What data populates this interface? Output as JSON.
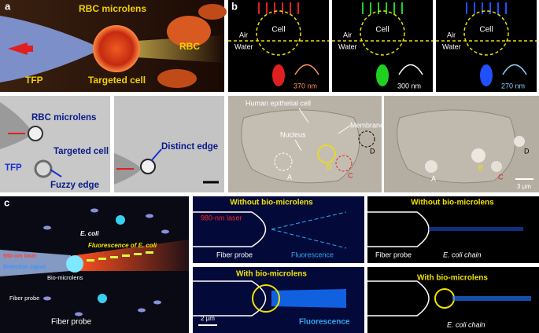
{
  "panel_a": {
    "label": "a",
    "top": {
      "rbc_microlens": "RBC microlens",
      "rbc": "RBC",
      "tfp": "TFP",
      "targeted_cell": "Targeted cell"
    },
    "bottom": {
      "rbc_microlens": "RBC microlens",
      "targeted_cell": "Targeted cell",
      "tfp": "TFP",
      "fuzzy_edge": "Fuzzy edge",
      "distinct_edge": "Distinct edge"
    }
  },
  "panel_b": {
    "label": "b",
    "images": [
      {
        "cell": "Cell",
        "air": "Air",
        "water": "Water",
        "wavelength": "370 nm"
      },
      {
        "cell": "Cell",
        "air": "Air",
        "water": "Water",
        "wavelength": "300 nm"
      },
      {
        "cell": "Cell",
        "air": "Air",
        "water": "Water",
        "wavelength": "270 nm"
      }
    ],
    "bottom": {
      "human_epithelial_cell": "Human epithelial cell",
      "nucleus": "Nucleus",
      "membrane": "Membrane",
      "markers_left": [
        "A",
        "B",
        "C",
        "D"
      ],
      "markers_right": [
        "A",
        "B",
        "C",
        "D"
      ],
      "scale_bar": "3 μm"
    }
  },
  "panel_c": {
    "label": "c",
    "schematic": {
      "e_coli": "E. coli",
      "fluorescence": "Fluorescence of E. coli",
      "laser": "980-nm laser",
      "detection": "Detection signal",
      "bio_microlens": "Bio-microlens",
      "fiber_probe_small": "Fiber probe",
      "fiber_probe": "Fiber probe"
    },
    "sim_without": {
      "title": "Without bio-microlens",
      "laser": "980-nm laser",
      "fiber_probe": "Fiber probe",
      "fluorescence": "Fluorescence"
    },
    "sim_with": {
      "title": "With bio-microlens",
      "fluorescence": "Fluorescence",
      "scale_bar": "2 μm"
    },
    "exp_without": {
      "title": "Without bio-microlens",
      "fiber_probe": "Fiber probe",
      "chain": "E. coli chain"
    },
    "exp_with": {
      "title": "With bio-microlens",
      "chain": "E. coli chain"
    }
  }
}
